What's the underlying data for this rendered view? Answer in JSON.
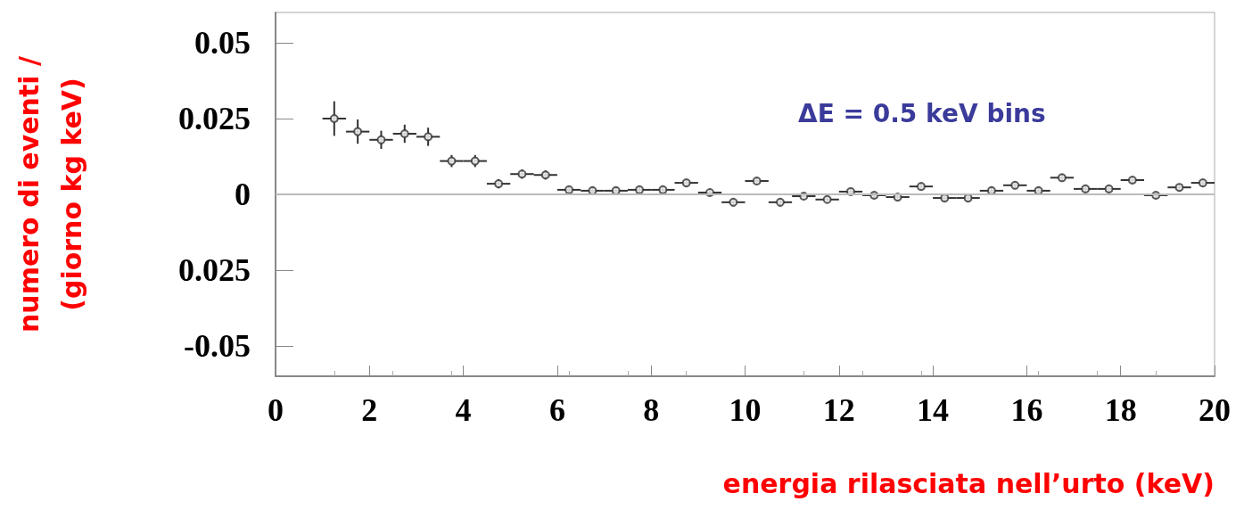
{
  "chart_data": {
    "type": "scatter",
    "xlabel": "energia rilasciata nell’urto (keV)",
    "ylabel": "numero di eventi /\n(giorno kg keV)",
    "annotations": [
      "ΔE = 0.5 keV bins"
    ],
    "x": [
      1.25,
      1.75,
      2.25,
      2.75,
      3.25,
      3.75,
      4.25,
      4.75,
      5.25,
      5.75,
      6.25,
      6.75,
      7.25,
      7.75,
      8.25,
      8.75,
      9.25,
      9.75,
      10.25,
      10.75,
      11.25,
      11.75,
      12.25,
      12.75,
      13.25,
      13.75,
      14.25,
      14.75,
      15.25,
      15.75,
      16.25,
      16.75,
      17.25,
      17.75,
      18.25,
      18.75,
      19.25,
      19.75
    ],
    "values": [
      0.025,
      0.0207,
      0.018,
      0.02,
      0.019,
      0.011,
      0.011,
      0.0035,
      0.0067,
      0.0064,
      0.0015,
      0.0012,
      0.0012,
      0.0015,
      0.0015,
      0.0038,
      0.0006,
      -0.0026,
      0.0044,
      -0.0026,
      -0.0006,
      -0.0017,
      0.0009,
      -0.0003,
      -0.0009,
      0.0026,
      -0.0012,
      -0.0012,
      0.0012,
      0.003,
      0.0012,
      0.0055,
      0.0018,
      0.0018,
      0.0047,
      -0.0003,
      0.0023,
      0.0038
    ],
    "errors": [
      0.0057,
      0.004,
      0.003,
      0.003,
      0.003,
      0.002,
      0.002,
      0.0015,
      0.0015,
      0.0015,
      0.0012,
      0.0012,
      0.0012,
      0.0012,
      0.0012,
      0.0012,
      0.0012,
      0.0012,
      0.0012,
      0.0012,
      0.0012,
      0.0012,
      0.0012,
      0.0012,
      0.0012,
      0.0012,
      0.0012,
      0.0012,
      0.0012,
      0.0012,
      0.0012,
      0.0012,
      0.0012,
      0.0012,
      0.0012,
      0.0012,
      0.0012,
      0.0012
    ],
    "xerrors": [
      0.25,
      0.25,
      0.25,
      0.25,
      0.25,
      0.25,
      0.25,
      0.25,
      0.25,
      0.25,
      0.25,
      0.25,
      0.25,
      0.25,
      0.25,
      0.25,
      0.25,
      0.25,
      0.25,
      0.25,
      0.25,
      0.25,
      0.25,
      0.25,
      0.25,
      0.25,
      0.25,
      0.25,
      0.25,
      0.25,
      0.25,
      0.25,
      0.25,
      0.25,
      0.25,
      0.25,
      0.25,
      0.25
    ],
    "color": "#333333",
    "marker": "circle",
    "xlim": [
      0,
      20
    ],
    "xticks": [
      0,
      2,
      4,
      6,
      8,
      10,
      12,
      14,
      16,
      18,
      20
    ],
    "ylim": [
      -0.06,
      0.06
    ],
    "yticks": [
      {
        "value": -0.05,
        "label": "-0.05"
      },
      {
        "value": -0.025,
        "label": "0.025"
      },
      0,
      {
        "value": 0.025,
        "label": "0.025"
      },
      {
        "value": 0.05,
        "label": "0.05"
      }
    ],
    "ref_lines": [
      {
        "axis": "y",
        "value": 0,
        "color": "#bbbbbb"
      }
    ],
    "grid": false
  }
}
